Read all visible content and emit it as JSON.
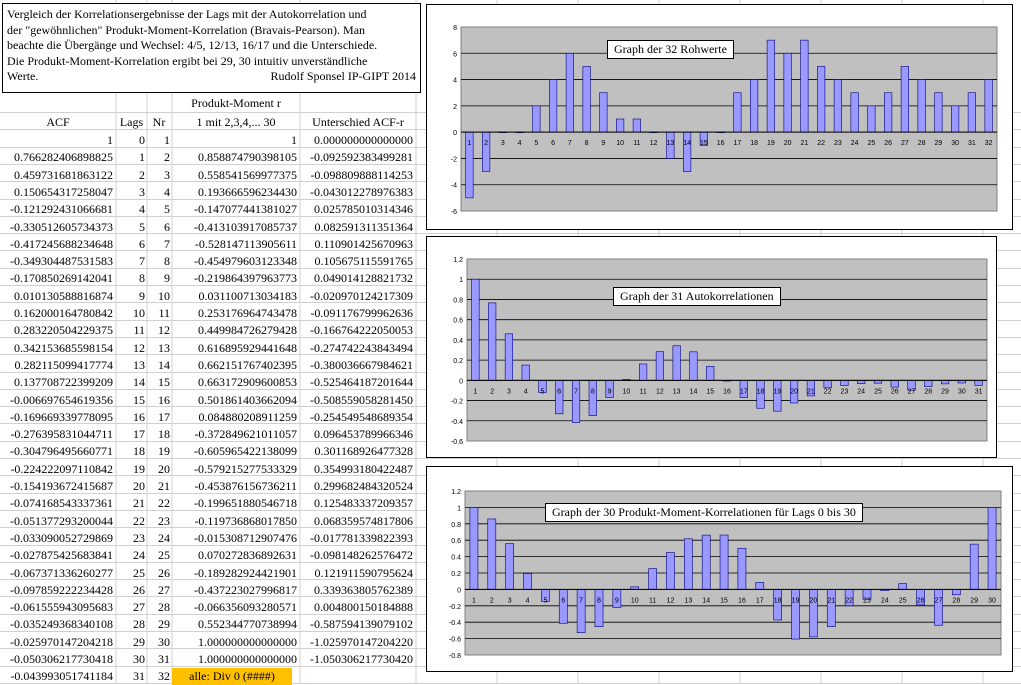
{
  "note": {
    "lines": [
      "Vergleich der Korrelationsergebnisse der Lags mit der Autokorrelation und",
      "der \"gewöhnlichen\" Produkt-Moment-Korrelation (Bravais-Pearson). Man",
      "beachte die Übergänge und Wechsel: 4/5, 12/13, 16/17 und die Unterschiede.",
      "Die Produkt-Moment-Korrelation ergibt bei 29, 30 intuitiv unverständliche"
    ],
    "last_line": "Werte.",
    "signature": "Rudolf Sponsel IP-GIPT 2014"
  },
  "table": {
    "header_top": "Produkt-Moment r",
    "headers": [
      "ACF",
      "Lags",
      "Nr",
      "1 mit 2,3,4,... 30",
      "Unterschied ACF-r"
    ],
    "rows": [
      [
        "1",
        "0",
        "1",
        "1",
        "0.000000000000000"
      ],
      [
        "0.766282406898825",
        "1",
        "2",
        "0.858874790398105",
        "-0.092592383499281"
      ],
      [
        "0.459731681863122",
        "2",
        "3",
        "0.558541569977375",
        "-0.098809888114253"
      ],
      [
        "0.150654317258047",
        "3",
        "4",
        "0.193666596234430",
        "-0.043012278976383"
      ],
      [
        "-0.121292431066681",
        "4",
        "5",
        "-0.147077441381027",
        "0.025785010314346"
      ],
      [
        "-0.330512605734373",
        "5",
        "6",
        "-0.413103917085737",
        "0.082591311351364"
      ],
      [
        "-0.417245688234648",
        "6",
        "7",
        "-0.528147113905611",
        "0.110901425670963"
      ],
      [
        "-0.349304487531583",
        "7",
        "8",
        "-0.454979603123348",
        "0.105675115591765"
      ],
      [
        "-0.170850269142041",
        "8",
        "9",
        "-0.219864397963773",
        "0.049014128821732"
      ],
      [
        "0.010130588816874",
        "9",
        "10",
        "0.031100713034183",
        "-0.020970124217309"
      ],
      [
        "0.162000164780842",
        "10",
        "11",
        "0.253176964743478",
        "-0.091176799962636"
      ],
      [
        "0.283220504229375",
        "11",
        "12",
        "0.449984726279428",
        "-0.166764222050053"
      ],
      [
        "0.342153685598154",
        "12",
        "13",
        "0.616895929441648",
        "-0.274742243843494"
      ],
      [
        "0.282115099417774",
        "13",
        "14",
        "0.662151767402395",
        "-0.380036667984621"
      ],
      [
        "0.137708722399209",
        "14",
        "15",
        "0.663172909600853",
        "-0.525464187201644"
      ],
      [
        "-0.006697654619356",
        "15",
        "16",
        "0.501861403662094",
        "-0.508559058281450"
      ],
      [
        "-0.169669339778095",
        "16",
        "17",
        "0.084880208911259",
        "-0.254549548689354"
      ],
      [
        "-0.276395831044711",
        "17",
        "18",
        "-0.372849621011057",
        "0.096453789966346"
      ],
      [
        "-0.304796495660771",
        "18",
        "19",
        "-0.605965422138099",
        "0.301168926477328"
      ],
      [
        "-0.224222097110842",
        "19",
        "20",
        "-0.579215277533329",
        "0.354993180422487"
      ],
      [
        "-0.154193672415687",
        "20",
        "21",
        "-0.453876156736211",
        "0.299682484320524"
      ],
      [
        "-0.074168543337361",
        "21",
        "22",
        "-0.199651880546718",
        "0.125483337209357"
      ],
      [
        "-0.051377293200044",
        "22",
        "23",
        "-0.119736868017850",
        "0.068359574817806"
      ],
      [
        "-0.033090052729869",
        "23",
        "24",
        "-0.015308712907476",
        "-0.017781339822393"
      ],
      [
        "-0.027875425683841",
        "24",
        "25",
        "0.070272836892631",
        "-0.098148262576472"
      ],
      [
        "-0.067371336260277",
        "25",
        "26",
        "-0.189282924421901",
        "0.121911590795624"
      ],
      [
        "-0.097859222234428",
        "26",
        "27",
        "-0.437223027996817",
        "0.339363805762389"
      ],
      [
        "-0.061555943095683",
        "27",
        "28",
        "-0.066356093280571",
        "0.004800150184888"
      ],
      [
        "-0.035249368340108",
        "28",
        "29",
        "0.552344770738994",
        "-0.587594139079102"
      ],
      [
        "-0.025970147204218",
        "29",
        "30",
        "1.000000000000000",
        "-1.025970147204220"
      ],
      [
        "-0.050306217730418",
        "30",
        "31",
        "1.000000000000000",
        "-1.050306217730420"
      ],
      [
        "-0.043993051741184",
        "31",
        "32",
        "alle: Div 0 (####)",
        ""
      ]
    ]
  },
  "chart_data": [
    {
      "type": "bar",
      "title": "Graph der 32 Rohwerte",
      "categories": [
        "1",
        "2",
        "3",
        "4",
        "5",
        "6",
        "7",
        "8",
        "9",
        "10",
        "11",
        "12",
        "13",
        "14",
        "15",
        "16",
        "17",
        "18",
        "19",
        "20",
        "21",
        "22",
        "23",
        "24",
        "25",
        "26",
        "27",
        "28",
        "29",
        "30",
        "31",
        "32"
      ],
      "values": [
        -5,
        -3,
        0,
        0,
        2,
        4,
        6,
        5,
        3,
        1,
        1,
        0,
        -2,
        -3,
        -1,
        0,
        3,
        4,
        7,
        6,
        7,
        5,
        4,
        3,
        2,
        3,
        5,
        4,
        3,
        2,
        3,
        4
      ],
      "ylim": [
        -6,
        8
      ],
      "yticks": [
        "-6",
        "-4",
        "-2",
        "0",
        "2",
        "4",
        "6",
        "8"
      ],
      "color": "#9999ff",
      "plot_bg": "#c0c0c0",
      "grid": true
    },
    {
      "type": "bar",
      "title": "Graph der 31 Autokorrelationen",
      "categories": [
        "1",
        "2",
        "3",
        "4",
        "5",
        "6",
        "7",
        "8",
        "9",
        "10",
        "11",
        "12",
        "13",
        "14",
        "15",
        "16",
        "17",
        "18",
        "19",
        "20",
        "21",
        "22",
        "23",
        "24",
        "25",
        "26",
        "27",
        "28",
        "29",
        "30",
        "31"
      ],
      "values": [
        1,
        0.766,
        0.46,
        0.151,
        -0.121,
        -0.331,
        -0.417,
        -0.349,
        -0.171,
        0.01,
        0.162,
        0.283,
        0.342,
        0.282,
        0.138,
        -0.007,
        -0.17,
        -0.276,
        -0.305,
        -0.224,
        -0.154,
        -0.074,
        -0.051,
        -0.033,
        -0.028,
        -0.067,
        -0.098,
        -0.062,
        -0.035,
        -0.026,
        -0.05
      ],
      "ylim": [
        -0.6,
        1.2
      ],
      "yticks": [
        "-0.6",
        "-0.4",
        "-0.2",
        "0",
        "0.2",
        "0.4",
        "0.6",
        "0.8",
        "1",
        "1.2"
      ],
      "color": "#9999ff",
      "plot_bg": "#c0c0c0",
      "grid": true
    },
    {
      "type": "bar",
      "title": "Graph der 30 Produkt-Moment-Korrelationen für Lags 0 bis 30",
      "categories": [
        "1",
        "2",
        "3",
        "4",
        "5",
        "6",
        "7",
        "8",
        "9",
        "10",
        "11",
        "12",
        "13",
        "14",
        "15",
        "16",
        "17",
        "18",
        "19",
        "20",
        "21",
        "22",
        "23",
        "24",
        "25",
        "26",
        "27",
        "28",
        "29",
        "30"
      ],
      "values": [
        1,
        0.859,
        0.559,
        0.194,
        -0.147,
        -0.413,
        -0.528,
        -0.455,
        -0.22,
        0.031,
        0.253,
        0.45,
        0.617,
        0.662,
        0.663,
        0.502,
        0.085,
        -0.373,
        -0.606,
        -0.579,
        -0.454,
        -0.2,
        -0.12,
        -0.015,
        0.07,
        -0.189,
        -0.437,
        -0.066,
        0.552,
        1
      ],
      "ylim": [
        -0.8,
        1.2
      ],
      "yticks": [
        "-0.8",
        "-0.6",
        "-0.4",
        "-0.2",
        "0",
        "0.2",
        "0.4",
        "0.6",
        "0.8",
        "1",
        "1.2"
      ],
      "color": "#9999ff",
      "plot_bg": "#c0c0c0",
      "grid": true
    }
  ]
}
